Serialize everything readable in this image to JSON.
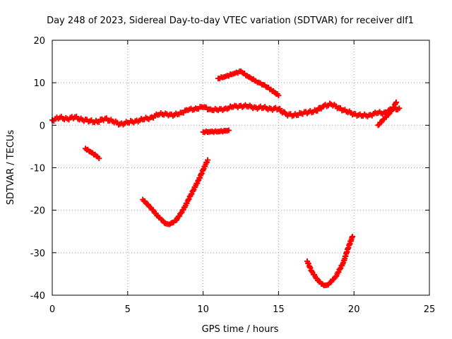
{
  "chart_data": {
    "type": "scatter",
    "title": "Day 248 of 2023, Sidereal Day-to-day VTEC variation (SDTVAR) for receiver dlf1",
    "xlabel": "GPS time / hours",
    "ylabel": "SDTVAR / TECUs",
    "xlim": [
      0,
      25
    ],
    "ylim": [
      -40,
      20
    ],
    "xticks": [
      0,
      5,
      10,
      15,
      20,
      25
    ],
    "yticks": [
      -40,
      -30,
      -20,
      -10,
      0,
      10,
      20
    ],
    "xtick_labels": [
      "0",
      "5",
      "10",
      "15",
      "20",
      "25"
    ],
    "ytick_labels": [
      "-40",
      "-30",
      "-20",
      "-10",
      "0",
      "10",
      "20"
    ],
    "grid": true,
    "marker": "plus",
    "color": "#ff0000",
    "series": [
      {
        "name": "main band",
        "points": [
          [
            0.0,
            1.2
          ],
          [
            0.5,
            1.8
          ],
          [
            1.0,
            1.5
          ],
          [
            1.5,
            1.9
          ],
          [
            2.0,
            1.3
          ],
          [
            2.5,
            1.0
          ],
          [
            3.0,
            0.8
          ],
          [
            3.5,
            1.6
          ],
          [
            4.0,
            0.9
          ],
          [
            4.5,
            0.3
          ],
          [
            5.0,
            0.6
          ],
          [
            5.5,
            1.0
          ],
          [
            6.0,
            1.3
          ],
          [
            6.5,
            1.8
          ],
          [
            7.0,
            2.4
          ],
          [
            7.5,
            2.8
          ],
          [
            8.0,
            2.2
          ],
          [
            8.5,
            3.0
          ],
          [
            9.0,
            3.5
          ],
          [
            9.5,
            4.0
          ],
          [
            10.0,
            4.2
          ],
          [
            10.5,
            3.8
          ],
          [
            11.0,
            3.5
          ],
          [
            11.5,
            4.0
          ],
          [
            12.0,
            4.3
          ],
          [
            12.5,
            4.6
          ],
          [
            13.0,
            4.4
          ],
          [
            13.5,
            4.2
          ],
          [
            14.0,
            4.1
          ],
          [
            14.5,
            3.9
          ],
          [
            15.0,
            3.8
          ],
          [
            15.5,
            2.6
          ],
          [
            16.0,
            2.3
          ],
          [
            16.5,
            2.8
          ],
          [
            17.0,
            3.1
          ],
          [
            17.5,
            3.4
          ],
          [
            18.0,
            4.6
          ],
          [
            18.5,
            4.9
          ],
          [
            19.0,
            4.1
          ],
          [
            19.5,
            3.2
          ],
          [
            20.0,
            2.7
          ],
          [
            20.5,
            2.2
          ],
          [
            21.0,
            2.4
          ],
          [
            21.5,
            2.8
          ],
          [
            22.0,
            3.0
          ],
          [
            22.5,
            3.7
          ],
          [
            23.0,
            4.0
          ]
        ]
      },
      {
        "name": "upper arc",
        "points": [
          [
            11.0,
            11.0
          ],
          [
            11.5,
            11.5
          ],
          [
            12.0,
            12.1
          ],
          [
            12.5,
            12.7
          ],
          [
            13.0,
            11.4
          ],
          [
            13.5,
            10.4
          ],
          [
            14.0,
            9.5
          ],
          [
            14.5,
            8.4
          ],
          [
            15.0,
            7.0
          ]
        ]
      },
      {
        "name": "rising segment",
        "points": [
          [
            21.6,
            0.0
          ],
          [
            22.0,
            1.5
          ],
          [
            22.5,
            3.4
          ],
          [
            22.8,
            5.4
          ]
        ]
      },
      {
        "name": "short segment",
        "points": [
          [
            10.0,
            -1.6
          ],
          [
            10.5,
            -1.5
          ],
          [
            11.0,
            -1.5
          ],
          [
            11.5,
            -1.3
          ],
          [
            11.7,
            -1.2
          ]
        ]
      },
      {
        "name": "small dip",
        "points": [
          [
            2.2,
            -5.5
          ],
          [
            2.6,
            -6.4
          ],
          [
            3.0,
            -7.4
          ],
          [
            3.1,
            -7.8
          ]
        ]
      },
      {
        "name": "first v-curve",
        "points": [
          [
            6.0,
            -17.5
          ],
          [
            6.5,
            -19.3
          ],
          [
            7.0,
            -21.4
          ],
          [
            7.5,
            -23.1
          ],
          [
            7.8,
            -23.3
          ],
          [
            8.2,
            -22.4
          ],
          [
            8.7,
            -19.8
          ],
          [
            9.2,
            -16.3
          ],
          [
            9.7,
            -12.9
          ],
          [
            10.0,
            -10.5
          ],
          [
            10.3,
            -8.2
          ]
        ]
      },
      {
        "name": "second v-curve",
        "points": [
          [
            16.9,
            -32.0
          ],
          [
            17.2,
            -34.4
          ],
          [
            17.6,
            -36.5
          ],
          [
            18.0,
            -37.7
          ],
          [
            18.3,
            -37.5
          ],
          [
            18.8,
            -35.6
          ],
          [
            19.3,
            -32.3
          ],
          [
            19.6,
            -29.0
          ],
          [
            19.9,
            -26.2
          ]
        ]
      }
    ]
  }
}
